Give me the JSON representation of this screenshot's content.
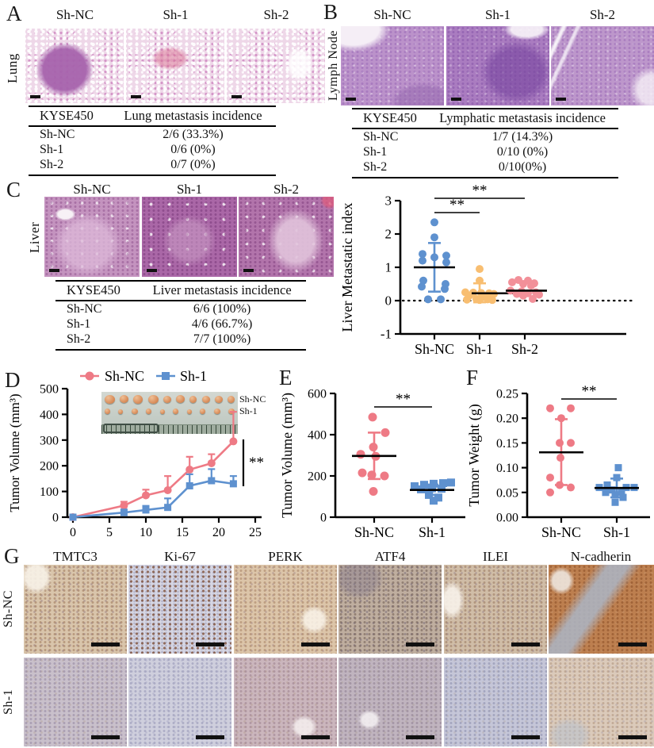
{
  "figure": {
    "panels": {
      "A": {
        "letter": "A",
        "organ": "Lung",
        "columns": [
          "Sh-NC",
          "Sh-1",
          "Sh-2"
        ],
        "table": {
          "col1": "KYSE450",
          "col2": "Lung metastasis incidence",
          "rows": [
            [
              "Sh-NC",
              "2/6 (33.3%)"
            ],
            [
              "Sh-1",
              "0/6 (0%)"
            ],
            [
              "Sh-2",
              "0/7 (0%)"
            ]
          ]
        }
      },
      "B": {
        "letter": "B",
        "organ": "Lymph Node",
        "columns": [
          "Sh-NC",
          "Sh-1",
          "Sh-2"
        ],
        "table": {
          "col1": "KYSE450",
          "col2": "Lymphatic metastasis incidence",
          "rows": [
            [
              "Sh-NC",
              "1/7 (14.3%)"
            ],
            [
              "Sh-1",
              "0/10 (0%)"
            ],
            [
              "Sh-2",
              "0/10(0%)"
            ]
          ]
        }
      },
      "C": {
        "letter": "C",
        "organ": "Liver",
        "columns": [
          "Sh-NC",
          "Sh-1",
          "Sh-2"
        ],
        "table": {
          "col1": "KYSE450",
          "col2": "Liver metastasis incidence",
          "rows": [
            [
              "Sh-NC",
              "6/6 (100%)"
            ],
            [
              "Sh-1",
              "4/6 (66.7%)"
            ],
            [
              "Sh-2",
              "7/7 (100%)"
            ]
          ]
        }
      },
      "D": {
        "letter": "D",
        "inset_labels": [
          "Sh-NC",
          "Sh-1"
        ]
      },
      "E": {
        "letter": "E"
      },
      "F": {
        "letter": "F"
      },
      "G": {
        "letter": "G",
        "columns": [
          "TMTC3",
          "Ki-67",
          "PERK",
          "ATF4",
          "ILEI",
          "N-cadherin"
        ],
        "rows": [
          "Sh-NC",
          "Sh-1"
        ]
      }
    }
  },
  "colors": {
    "sh_nc_red": "#ee7a85",
    "sh1_blue": "#5e91cf",
    "sh1_orange": "#f8be71",
    "sh2_pink": "#f29099"
  },
  "chart_data": [
    {
      "id": "liver-metastatic-index",
      "type": "scatter",
      "title": "",
      "ylabel": "Liver Metastatic index",
      "ylim": [
        -1,
        3
      ],
      "yticks": [
        {
          "v": 3,
          "label": "3"
        },
        {
          "v": 2,
          "label": "2"
        },
        {
          "v": 1,
          "label": "1"
        },
        {
          "v": 0,
          "label": "0"
        },
        {
          "v": -1,
          "label": "-1"
        }
      ],
      "categories": [
        "Sh-NC",
        "Sh-1",
        "Sh-2"
      ],
      "zero_line": true,
      "series": [
        {
          "name": "Sh-NC",
          "color": "#5e91cf",
          "marker": "circle",
          "mean": 1.0,
          "sd": [
            0.27,
            1.73
          ],
          "points": [
            [
              0,
              2.35
            ],
            [
              0,
              1.9
            ],
            [
              -15,
              1.4
            ],
            [
              15,
              1.35
            ],
            [
              0,
              1.3
            ],
            [
              -15,
              1.2
            ],
            [
              15,
              1.15
            ],
            [
              -14,
              0.6
            ],
            [
              14,
              0.5
            ],
            [
              -16,
              0.42
            ],
            [
              13,
              0.35
            ],
            [
              -8,
              0.04
            ],
            [
              8,
              0.04
            ]
          ]
        },
        {
          "name": "Sh-1",
          "color": "#f8be71",
          "marker": "circle",
          "mean": 0.22,
          "sd": [
            -0.05,
            0.52
          ],
          "points": [
            [
              0,
              0.95
            ],
            [
              0,
              0.6
            ],
            [
              -18,
              0.25
            ],
            [
              -8,
              0.24
            ],
            [
              2,
              0.23
            ],
            [
              12,
              0.22
            ],
            [
              18,
              0.2
            ],
            [
              -13,
              0.15
            ],
            [
              5,
              0.12
            ],
            [
              -4,
              0.05
            ],
            [
              10,
              0.04
            ],
            [
              -16,
              0.03
            ],
            [
              0,
              0.02
            ],
            [
              16,
              0.02
            ]
          ]
        },
        {
          "name": "Sh-2",
          "color": "#f29099",
          "marker": "circle",
          "mean": 0.3,
          "sd": null,
          "points": [
            [
              -8,
              0.62
            ],
            [
              4,
              0.6
            ],
            [
              -16,
              0.55
            ],
            [
              12,
              0.52
            ],
            [
              -2,
              0.5
            ],
            [
              8,
              0.45
            ],
            [
              -18,
              0.3
            ],
            [
              -4,
              0.28
            ],
            [
              14,
              0.25
            ],
            [
              4,
              0.22
            ],
            [
              -10,
              0.2
            ],
            [
              18,
              0.18
            ],
            [
              -2,
              0.15
            ],
            [
              10,
              0.05
            ]
          ]
        }
      ],
      "significance": [
        {
          "groups": [
            0,
            1
          ],
          "label": "**"
        },
        {
          "groups": [
            0,
            2
          ],
          "label": "**"
        }
      ]
    },
    {
      "id": "tumor-growth",
      "type": "line",
      "title": "",
      "ylabel": "Tumor Volume (mm³)",
      "xlabel": "",
      "xlim": [
        0,
        25
      ],
      "ylim": [
        0,
        500
      ],
      "xticks": [
        {
          "v": 0,
          "label": "0"
        },
        {
          "v": 5,
          "label": "5"
        },
        {
          "v": 10,
          "label": "10"
        },
        {
          "v": 15,
          "label": "15"
        },
        {
          "v": 20,
          "label": "20"
        },
        {
          "v": 25,
          "label": "25"
        }
      ],
      "yticks": [
        {
          "v": 0,
          "label": "0"
        },
        {
          "v": 100,
          "label": "100"
        },
        {
          "v": 200,
          "label": "200"
        },
        {
          "v": 300,
          "label": "300"
        },
        {
          "v": 400,
          "label": "400"
        },
        {
          "v": 500,
          "label": "500"
        }
      ],
      "legend_position": "top",
      "series": [
        {
          "name": "Sh-NC",
          "color": "#ee7a85",
          "marker": "circle",
          "x": [
            0,
            7,
            10,
            13,
            16,
            19,
            22
          ],
          "y": [
            0,
            45,
            85,
            105,
            185,
            210,
            295
          ],
          "err": [
            0,
            15,
            22,
            55,
            50,
            35,
            115
          ]
        },
        {
          "name": "Sh-1",
          "color": "#5e91cf",
          "marker": "square",
          "x": [
            0,
            7,
            10,
            13,
            16,
            19,
            22
          ],
          "y": [
            0,
            18,
            28,
            38,
            122,
            142,
            130
          ],
          "err": [
            0,
            12,
            16,
            35,
            45,
            45,
            30
          ]
        }
      ],
      "significance": {
        "label": "**"
      }
    },
    {
      "id": "tumor-volume",
      "type": "scatter",
      "title": "",
      "ylabel": "Tumor Volume (mm³)",
      "ylim": [
        0,
        600
      ],
      "yticks": [
        {
          "v": 0,
          "label": "0"
        },
        {
          "v": 200,
          "label": "200"
        },
        {
          "v": 400,
          "label": "400"
        },
        {
          "v": 600,
          "label": "600"
        }
      ],
      "categories": [
        "Sh-NC",
        "Sh-1"
      ],
      "zero_line": false,
      "series": [
        {
          "name": "Sh-NC",
          "color": "#ee7a85",
          "marker": "circle",
          "mean": 297,
          "sd": [
            185,
            410
          ],
          "points": [
            [
              -2,
              485
            ],
            [
              14,
              410
            ],
            [
              -1,
              340
            ],
            [
              -17,
              305
            ],
            [
              2,
              295
            ],
            [
              -15,
              215
            ],
            [
              -3,
              205
            ],
            [
              13,
              200
            ],
            [
              -1,
              125
            ]
          ]
        },
        {
          "name": "Sh-1",
          "color": "#5e91cf",
          "marker": "square",
          "mean": 132,
          "sd": [
            108,
            158
          ],
          "points": [
            [
              -22,
              150
            ],
            [
              -10,
              157
            ],
            [
              2,
              162
            ],
            [
              14,
              165
            ],
            [
              24,
              168
            ],
            [
              -14,
              135
            ],
            [
              0,
              140
            ],
            [
              12,
              138
            ],
            [
              -4,
              108
            ],
            [
              8,
              95
            ],
            [
              2,
              80
            ]
          ]
        }
      ],
      "significance": [
        {
          "groups": [
            0,
            1
          ],
          "label": "**"
        }
      ]
    },
    {
      "id": "tumor-weight",
      "type": "scatter",
      "title": "",
      "ylabel": "Tumor Weight (g)",
      "ylim": [
        0,
        0.25
      ],
      "yticks": [
        {
          "v": 0,
          "label": "0.00"
        },
        {
          "v": 0.05,
          "label": "0.05"
        },
        {
          "v": 0.1,
          "label": "0.10"
        },
        {
          "v": 0.15,
          "label": "0.15"
        },
        {
          "v": 0.2,
          "label": "0.20"
        },
        {
          "v": 0.25,
          "label": "0.25"
        }
      ],
      "categories": [
        "Sh-NC",
        "Sh-1"
      ],
      "zero_line": false,
      "series": [
        {
          "name": "Sh-NC",
          "color": "#ee7a85",
          "marker": "circle",
          "mean": 0.131,
          "sd": [
            0.065,
            0.198
          ],
          "points": [
            [
              -14,
              0.22
            ],
            [
              12,
              0.22
            ],
            [
              0,
              0.2
            ],
            [
              -2,
              0.15
            ],
            [
              12,
              0.15
            ],
            [
              -1,
              0.12
            ],
            [
              -14,
              0.08
            ],
            [
              -2,
              0.065
            ],
            [
              12,
              0.06
            ],
            [
              -14,
              0.05
            ]
          ]
        },
        {
          "name": "Sh-1",
          "color": "#5e91cf",
          "marker": "square",
          "mean": 0.059,
          "sd": [
            0.04,
            0.078
          ],
          "points": [
            [
              2,
              0.1
            ],
            [
              0,
              0.08
            ],
            [
              -12,
              0.065
            ],
            [
              -22,
              0.06
            ],
            [
              12,
              0.06
            ],
            [
              22,
              0.06
            ],
            [
              -6,
              0.055
            ],
            [
              6,
              0.05
            ],
            [
              -14,
              0.05
            ],
            [
              -2,
              0.045
            ],
            [
              8,
              0.04
            ],
            [
              -2,
              0.03
            ]
          ]
        }
      ],
      "significance": [
        {
          "groups": [
            0,
            1
          ],
          "label": "**"
        }
      ]
    }
  ]
}
